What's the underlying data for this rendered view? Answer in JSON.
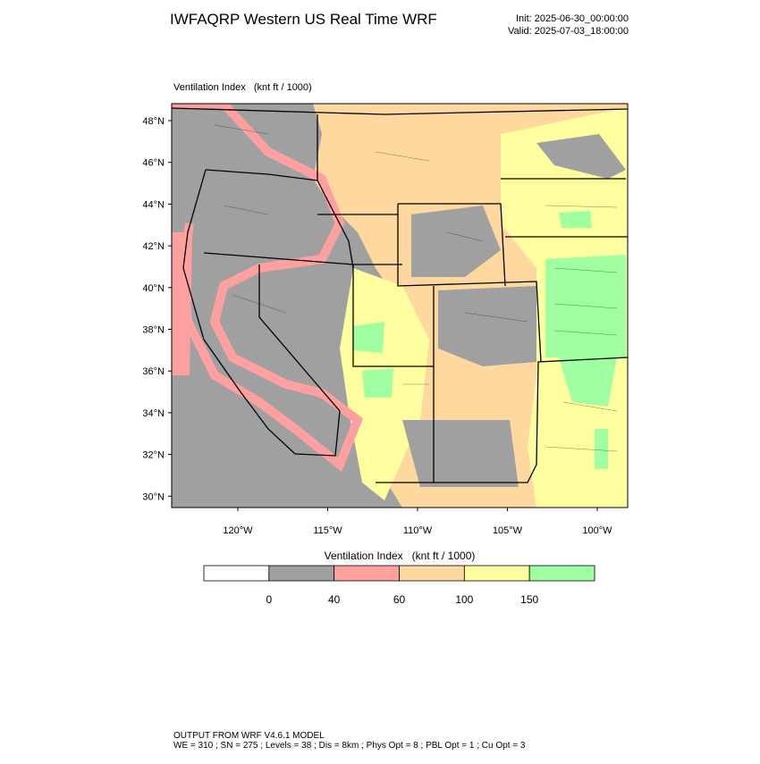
{
  "header": {
    "title": "IWFAQRP Western US Real Time WRF",
    "init": "Init: 2025-06-30_00:00:00",
    "valid": "Valid: 2025-07-03_18:00:00"
  },
  "map": {
    "label": "Ventilation Index   (knt ft / 1000)",
    "lat_labels": [
      "48°N",
      "46°N",
      "44°N",
      "42°N",
      "40°N",
      "38°N",
      "36°N",
      "34°N",
      "32°N",
      "30°N"
    ],
    "lon_labels": [
      "120°W",
      "115°W",
      "110°W",
      "105°W",
      "100°W"
    ]
  },
  "colorbar": {
    "title": "Ventilation Index   (knt ft / 1000)",
    "colors": [
      "#ffffff",
      "#a0a0a0",
      "#ffa0a0",
      "#ffd8a0",
      "#ffffa0",
      "#a0ffa0"
    ],
    "labels": [
      "0",
      "40",
      "60",
      "100",
      "150"
    ]
  },
  "footer": {
    "line1": "OUTPUT FROM WRF V4.6.1 MODEL",
    "line2": "WE = 310 ; SN = 275 ; Levels = 38 ; Dis = 8km ; Phys Opt = 8 ; PBL Opt = 1 ; Cu Opt = 3"
  }
}
